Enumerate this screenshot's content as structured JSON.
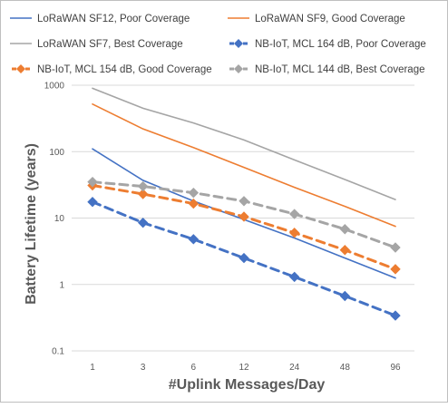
{
  "chart_data": {
    "type": "line",
    "title": "",
    "xlabel": "#Uplink Messages/Day",
    "ylabel": "Battery Lifetime (years)",
    "x_categories": [
      "1",
      "3",
      "6",
      "12",
      "24",
      "48",
      "96"
    ],
    "y_scale": "log",
    "ylim": [
      0.1,
      1000
    ],
    "y_ticks": [
      {
        "value": 0.1,
        "label": "0.1"
      },
      {
        "value": 1,
        "label": "1"
      },
      {
        "value": 10,
        "label": "10"
      },
      {
        "value": 100,
        "label": "100"
      },
      {
        "value": 1000,
        "label": "1000"
      }
    ],
    "grid": "horizontal",
    "legend_position": "top",
    "series": [
      {
        "name": "LoRaWAN SF12, Poor Coverage",
        "color": "#4472c4",
        "style": "solid",
        "marker": "none",
        "values": [
          110,
          37,
          18,
          9.5,
          5,
          2.5,
          1.25
        ]
      },
      {
        "name": "LoRaWAN SF9, Good Coverage",
        "color": "#ed7d31",
        "style": "solid",
        "marker": "none",
        "values": [
          520,
          220,
          115,
          58,
          29,
          15,
          7.5
        ]
      },
      {
        "name": "LoRaWAN SF7, Best Coverage",
        "color": "#a5a5a5",
        "style": "solid",
        "marker": "none",
        "values": [
          900,
          450,
          270,
          150,
          75,
          38,
          19
        ]
      },
      {
        "name": "NB-IoT, MCL 164 dB, Poor Coverage",
        "color": "#4472c4",
        "style": "dashed",
        "marker": "diamond",
        "values": [
          17.5,
          8.5,
          4.8,
          2.5,
          1.3,
          0.67,
          0.34
        ]
      },
      {
        "name": "NB-IoT, MCL 154 dB, Good Coverage",
        "color": "#ed7d31",
        "style": "dashed",
        "marker": "diamond",
        "values": [
          31,
          23,
          16.5,
          10.5,
          6,
          3.3,
          1.7
        ]
      },
      {
        "name": "NB-IoT, MCL 144 dB, Best Coverage",
        "color": "#a5a5a5",
        "style": "dashed",
        "marker": "diamond",
        "values": [
          35,
          30,
          24,
          18,
          11.5,
          6.8,
          3.6
        ]
      }
    ]
  }
}
